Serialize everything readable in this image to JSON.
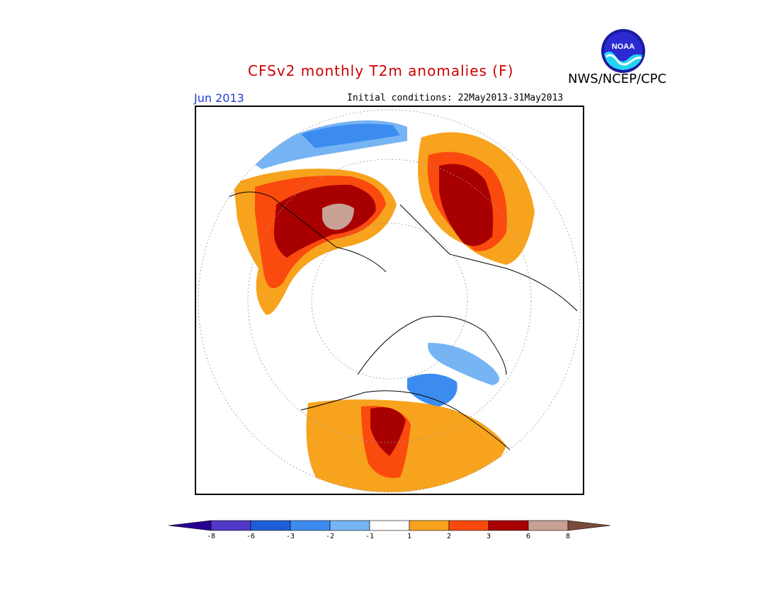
{
  "header": {
    "title": "CFSv2 monthly T2m anomalies (F)",
    "agency": "NWS/NCEP/CPC",
    "month": "Jun 2013",
    "initial_conditions": "Initial conditions: 22May2013-31May2013",
    "logo_text": "NOAA"
  },
  "colors": {
    "title": "#cc0000",
    "month": "#1f3fcc",
    "frame": "#000000"
  },
  "legend": {
    "under_color": "#280090",
    "over_color": "#7a4a3a",
    "bins": [
      {
        "color": "#5038c8"
      },
      {
        "color": "#1f5ed8"
      },
      {
        "color": "#3c8cf0"
      },
      {
        "color": "#76b4f4"
      },
      {
        "color": "#ffffff"
      },
      {
        "color": "#f7a31d"
      },
      {
        "color": "#fb4a0e"
      },
      {
        "color": "#a80000"
      },
      {
        "color": "#c8a094"
      }
    ],
    "labels": [
      "-8",
      "-6",
      "-3",
      "-2",
      "-1",
      "1",
      "2",
      "3",
      "6",
      "8"
    ]
  }
}
